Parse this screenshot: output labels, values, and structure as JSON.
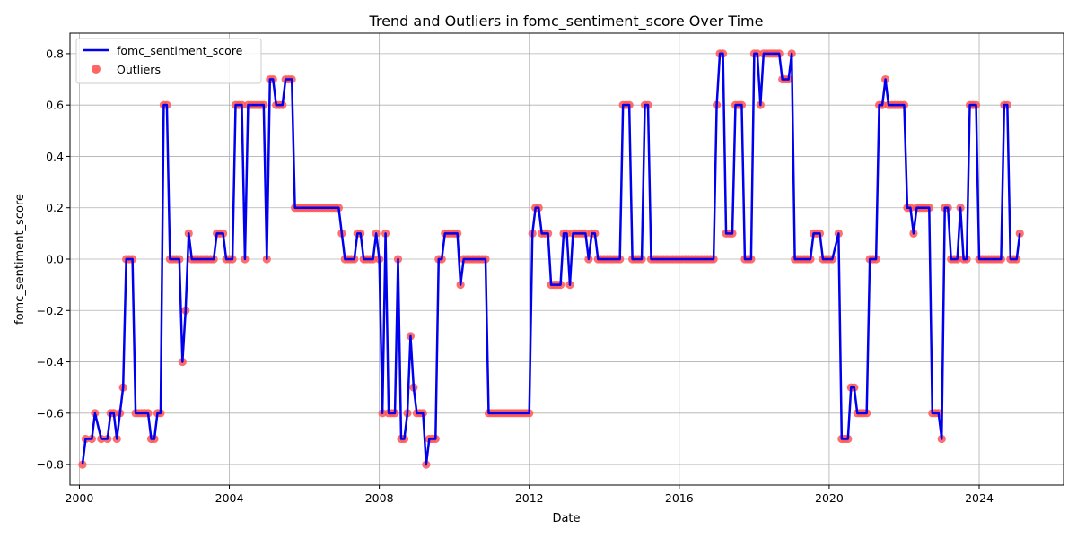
{
  "chart_data": {
    "type": "line",
    "title": "Trend and Outliers in fomc_sentiment_score Over Time",
    "xlabel": "Date",
    "ylabel": "fomc_sentiment_score",
    "xlim": [
      1999.75,
      2026.25
    ],
    "ylim": [
      -0.88,
      0.88
    ],
    "x_ticks": [
      2000,
      2004,
      2008,
      2012,
      2016,
      2020,
      2024
    ],
    "x_tick_labels": [
      "2000",
      "2004",
      "2008",
      "2012",
      "2016",
      "2020",
      "2024"
    ],
    "y_ticks": [
      -0.8,
      -0.6,
      -0.4,
      -0.2,
      0.0,
      0.2,
      0.4,
      0.6,
      0.8
    ],
    "y_tick_labels": [
      "−0.8",
      "−0.6",
      "−0.4",
      "−0.2",
      "0.0",
      "0.2",
      "0.4",
      "0.6",
      "0.8"
    ],
    "grid": true,
    "legend_position": "top-left",
    "series": [
      {
        "name": "fomc_sentiment_score",
        "kind": "line",
        "color": "#0000ee"
      },
      {
        "name": "Outliers",
        "kind": "scatter",
        "color": "#ff5555"
      }
    ],
    "points": [
      [
        "2000-02",
        -0.8
      ],
      [
        "2000-03",
        -0.7
      ],
      [
        "2000-05",
        -0.7
      ],
      [
        "2000-06",
        -0.6
      ],
      [
        "2000-08",
        -0.7
      ],
      [
        "2000-10",
        -0.7
      ],
      [
        "2000-11",
        -0.6
      ],
      [
        "2000-12",
        -0.6
      ],
      [
        "2001-01",
        -0.7
      ],
      [
        "2001-02",
        -0.6
      ],
      [
        "2001-03",
        -0.5
      ],
      [
        "2001-04",
        0.0
      ],
      [
        "2001-05",
        0.0
      ],
      [
        "2001-06",
        0.0
      ],
      [
        "2001-07",
        -0.6
      ],
      [
        "2001-08",
        -0.6
      ],
      [
        "2001-09",
        -0.6
      ],
      [
        "2001-10",
        -0.6
      ],
      [
        "2001-11",
        -0.6
      ],
      [
        "2001-12",
        -0.7
      ],
      [
        "2002-01",
        -0.7
      ],
      [
        "2002-02",
        -0.6
      ],
      [
        "2002-03",
        -0.6
      ],
      [
        "2002-04",
        0.6
      ],
      [
        "2002-05",
        0.6
      ],
      [
        "2002-06",
        0.0
      ],
      [
        "2002-07",
        0.0
      ],
      [
        "2002-08",
        0.0
      ],
      [
        "2002-09",
        0.0
      ],
      [
        "2002-10",
        -0.4
      ],
      [
        "2002-11",
        -0.2
      ],
      [
        "2002-12",
        0.1
      ],
      [
        "2003-01",
        0.0
      ],
      [
        "2003-02",
        0.0
      ],
      [
        "2003-03",
        0.0
      ],
      [
        "2003-04",
        0.0
      ],
      [
        "2003-05",
        0.0
      ],
      [
        "2003-06",
        0.0
      ],
      [
        "2003-07",
        0.0
      ],
      [
        "2003-08",
        0.0
      ],
      [
        "2003-09",
        0.1
      ],
      [
        "2003-10",
        0.1
      ],
      [
        "2003-11",
        0.1
      ],
      [
        "2003-12",
        0.0
      ],
      [
        "2004-01",
        0.0
      ],
      [
        "2004-02",
        0.0
      ],
      [
        "2004-03",
        0.6
      ],
      [
        "2004-04",
        0.6
      ],
      [
        "2004-05",
        0.6
      ],
      [
        "2004-06",
        0.0
      ],
      [
        "2004-07",
        0.6
      ],
      [
        "2004-08",
        0.6
      ],
      [
        "2004-09",
        0.6
      ],
      [
        "2004-10",
        0.6
      ],
      [
        "2004-11",
        0.6
      ],
      [
        "2004-12",
        0.6
      ],
      [
        "2005-01",
        0.0
      ],
      [
        "2005-02",
        0.7
      ],
      [
        "2005-03",
        0.7
      ],
      [
        "2005-04",
        0.6
      ],
      [
        "2005-05",
        0.6
      ],
      [
        "2005-06",
        0.6
      ],
      [
        "2005-07",
        0.7
      ],
      [
        "2005-08",
        0.7
      ],
      [
        "2005-09",
        0.7
      ],
      [
        "2005-10",
        0.2
      ],
      [
        "2005-11",
        0.2
      ],
      [
        "2005-12",
        0.2
      ],
      [
        "2006-01",
        0.2
      ],
      [
        "2006-02",
        0.2
      ],
      [
        "2006-03",
        0.2
      ],
      [
        "2006-04",
        0.2
      ],
      [
        "2006-05",
        0.2
      ],
      [
        "2006-06",
        0.2
      ],
      [
        "2006-07",
        0.2
      ],
      [
        "2006-08",
        0.2
      ],
      [
        "2006-09",
        0.2
      ],
      [
        "2006-10",
        0.2
      ],
      [
        "2006-11",
        0.2
      ],
      [
        "2006-12",
        0.2
      ],
      [
        "2007-01",
        0.1
      ],
      [
        "2007-02",
        0.0
      ],
      [
        "2007-03",
        0.0
      ],
      [
        "2007-04",
        0.0
      ],
      [
        "2007-05",
        0.0
      ],
      [
        "2007-06",
        0.1
      ],
      [
        "2007-07",
        0.1
      ],
      [
        "2007-08",
        0.0
      ],
      [
        "2007-09",
        0.0
      ],
      [
        "2007-10",
        0.0
      ],
      [
        "2007-11",
        0.0
      ],
      [
        "2007-12",
        0.1
      ],
      [
        "2008-01",
        0.0
      ],
      [
        "2008-02",
        -0.6
      ],
      [
        "2008-03",
        0.1
      ],
      [
        "2008-04",
        -0.6
      ],
      [
        "2008-05",
        -0.6
      ],
      [
        "2008-06",
        -0.6
      ],
      [
        "2008-07",
        0.0
      ],
      [
        "2008-08",
        -0.7
      ],
      [
        "2008-09",
        -0.7
      ],
      [
        "2008-10",
        -0.6
      ],
      [
        "2008-11",
        -0.3
      ],
      [
        "2008-12",
        -0.5
      ],
      [
        "2009-01",
        -0.6
      ],
      [
        "2009-02",
        -0.6
      ],
      [
        "2009-03",
        -0.6
      ],
      [
        "2009-04",
        -0.8
      ],
      [
        "2009-05",
        -0.7
      ],
      [
        "2009-06",
        -0.7
      ],
      [
        "2009-07",
        -0.7
      ],
      [
        "2009-08",
        0.0
      ],
      [
        "2009-09",
        0.0
      ],
      [
        "2009-10",
        0.1
      ],
      [
        "2009-11",
        0.1
      ],
      [
        "2009-12",
        0.1
      ],
      [
        "2010-01",
        0.1
      ],
      [
        "2010-02",
        0.1
      ],
      [
        "2010-03",
        -0.1
      ],
      [
        "2010-04",
        0.0
      ],
      [
        "2010-05",
        0.0
      ],
      [
        "2010-06",
        0.0
      ],
      [
        "2010-07",
        0.0
      ],
      [
        "2010-08",
        0.0
      ],
      [
        "2010-09",
        0.0
      ],
      [
        "2010-10",
        0.0
      ],
      [
        "2010-11",
        0.0
      ],
      [
        "2010-12",
        -0.6
      ],
      [
        "2011-01",
        -0.6
      ],
      [
        "2011-02",
        -0.6
      ],
      [
        "2011-03",
        -0.6
      ],
      [
        "2011-04",
        -0.6
      ],
      [
        "2011-05",
        -0.6
      ],
      [
        "2011-06",
        -0.6
      ],
      [
        "2011-07",
        -0.6
      ],
      [
        "2011-08",
        -0.6
      ],
      [
        "2011-09",
        -0.6
      ],
      [
        "2011-10",
        -0.6
      ],
      [
        "2011-11",
        -0.6
      ],
      [
        "2011-12",
        -0.6
      ],
      [
        "2012-01",
        -0.6
      ],
      [
        "2012-02",
        0.1
      ],
      [
        "2012-03",
        0.2
      ],
      [
        "2012-04",
        0.2
      ],
      [
        "2012-05",
        0.1
      ],
      [
        "2012-06",
        0.1
      ],
      [
        "2012-07",
        0.1
      ],
      [
        "2012-08",
        -0.1
      ],
      [
        "2012-09",
        -0.1
      ],
      [
        "2012-10",
        -0.1
      ],
      [
        "2012-11",
        -0.1
      ],
      [
        "2012-12",
        0.1
      ],
      [
        "2013-01",
        0.1
      ],
      [
        "2013-02",
        -0.1
      ],
      [
        "2013-03",
        0.1
      ],
      [
        "2013-04",
        0.1
      ],
      [
        "2013-05",
        0.1
      ],
      [
        "2013-06",
        0.1
      ],
      [
        "2013-07",
        0.1
      ],
      [
        "2013-08",
        0.0
      ],
      [
        "2013-09",
        0.1
      ],
      [
        "2013-10",
        0.1
      ],
      [
        "2013-11",
        0.0
      ],
      [
        "2013-12",
        0.0
      ],
      [
        "2014-01",
        0.0
      ],
      [
        "2014-02",
        0.0
      ],
      [
        "2014-03",
        0.0
      ],
      [
        "2014-04",
        0.0
      ],
      [
        "2014-05",
        0.0
      ],
      [
        "2014-06",
        0.0
      ],
      [
        "2014-07",
        0.6
      ],
      [
        "2014-08",
        0.6
      ],
      [
        "2014-09",
        0.6
      ],
      [
        "2014-10",
        0.0
      ],
      [
        "2014-11",
        0.0
      ],
      [
        "2014-12",
        0.0
      ],
      [
        "2015-01",
        0.0
      ],
      [
        "2015-02",
        0.6
      ],
      [
        "2015-03",
        0.6
      ],
      [
        "2015-04",
        0.0
      ],
      [
        "2015-05",
        0.0
      ],
      [
        "2015-06",
        0.0
      ],
      [
        "2015-07",
        0.0
      ],
      [
        "2015-08",
        0.0
      ],
      [
        "2015-09",
        0.0
      ],
      [
        "2015-10",
        0.0
      ],
      [
        "2015-11",
        0.0
      ],
      [
        "2015-12",
        0.0
      ],
      [
        "2016-01",
        0.0
      ],
      [
        "2016-02",
        0.0
      ],
      [
        "2016-03",
        0.0
      ],
      [
        "2016-04",
        0.0
      ],
      [
        "2016-05",
        0.0
      ],
      [
        "2016-06",
        0.0
      ],
      [
        "2016-07",
        0.0
      ],
      [
        "2016-08",
        0.0
      ],
      [
        "2016-09",
        0.0
      ],
      [
        "2016-10",
        0.0
      ],
      [
        "2016-11",
        0.0
      ],
      [
        "2016-12",
        0.0
      ],
      [
        "2017-01",
        0.6
      ],
      [
        "2017-02",
        0.8
      ],
      [
        "2017-03",
        0.8
      ],
      [
        "2017-04",
        0.1
      ],
      [
        "2017-05",
        0.1
      ],
      [
        "2017-06",
        0.1
      ],
      [
        "2017-07",
        0.6
      ],
      [
        "2017-08",
        0.6
      ],
      [
        "2017-09",
        0.6
      ],
      [
        "2017-10",
        0.0
      ],
      [
        "2017-11",
        0.0
      ],
      [
        "2017-12",
        0.0
      ],
      [
        "2018-01",
        0.8
      ],
      [
        "2018-02",
        0.8
      ],
      [
        "2018-03",
        0.6
      ],
      [
        "2018-04",
        0.8
      ],
      [
        "2018-05",
        0.8
      ],
      [
        "2018-06",
        0.8
      ],
      [
        "2018-07",
        0.8
      ],
      [
        "2018-08",
        0.8
      ],
      [
        "2018-09",
        0.8
      ],
      [
        "2018-10",
        0.7
      ],
      [
        "2018-11",
        0.7
      ],
      [
        "2018-12",
        0.7
      ],
      [
        "2019-01",
        0.8
      ],
      [
        "2019-02",
        0.0
      ],
      [
        "2019-03",
        0.0
      ],
      [
        "2019-04",
        0.0
      ],
      [
        "2019-05",
        0.0
      ],
      [
        "2019-06",
        0.0
      ],
      [
        "2019-07",
        0.0
      ],
      [
        "2019-08",
        0.1
      ],
      [
        "2019-09",
        0.1
      ],
      [
        "2019-10",
        0.1
      ],
      [
        "2019-11",
        0.0
      ],
      [
        "2019-12",
        0.0
      ],
      [
        "2020-01",
        0.0
      ],
      [
        "2020-02",
        0.0
      ],
      [
        "2020-04",
        0.1
      ],
      [
        "2020-05",
        -0.7
      ],
      [
        "2020-06",
        -0.7
      ],
      [
        "2020-07",
        -0.7
      ],
      [
        "2020-08",
        -0.5
      ],
      [
        "2020-09",
        -0.5
      ],
      [
        "2020-10",
        -0.6
      ],
      [
        "2020-11",
        -0.6
      ],
      [
        "2020-12",
        -0.6
      ],
      [
        "2021-01",
        -0.6
      ],
      [
        "2021-02",
        0.0
      ],
      [
        "2021-03",
        0.0
      ],
      [
        "2021-04",
        0.0
      ],
      [
        "2021-05",
        0.6
      ],
      [
        "2021-06",
        0.6
      ],
      [
        "2021-07",
        0.7
      ],
      [
        "2021-08",
        0.6
      ],
      [
        "2021-09",
        0.6
      ],
      [
        "2021-10",
        0.6
      ],
      [
        "2021-11",
        0.6
      ],
      [
        "2021-12",
        0.6
      ],
      [
        "2022-01",
        0.6
      ],
      [
        "2022-02",
        0.2
      ],
      [
        "2022-03",
        0.2
      ],
      [
        "2022-04",
        0.1
      ],
      [
        "2022-05",
        0.2
      ],
      [
        "2022-06",
        0.2
      ],
      [
        "2022-07",
        0.2
      ],
      [
        "2022-08",
        0.2
      ],
      [
        "2022-09",
        0.2
      ],
      [
        "2022-10",
        -0.6
      ],
      [
        "2022-11",
        -0.6
      ],
      [
        "2022-12",
        -0.6
      ],
      [
        "2023-01",
        -0.7
      ],
      [
        "2023-02",
        0.2
      ],
      [
        "2023-03",
        0.2
      ],
      [
        "2023-04",
        0.0
      ],
      [
        "2023-05",
        0.0
      ],
      [
        "2023-06",
        0.0
      ],
      [
        "2023-07",
        0.2
      ],
      [
        "2023-08",
        0.0
      ],
      [
        "2023-09",
        0.0
      ],
      [
        "2023-10",
        0.6
      ],
      [
        "2023-11",
        0.6
      ],
      [
        "2023-12",
        0.6
      ],
      [
        "2024-01",
        0.0
      ],
      [
        "2024-02",
        0.0
      ],
      [
        "2024-03",
        0.0
      ],
      [
        "2024-04",
        0.0
      ],
      [
        "2024-05",
        0.0
      ],
      [
        "2024-06",
        0.0
      ],
      [
        "2024-07",
        0.0
      ],
      [
        "2024-08",
        0.0
      ],
      [
        "2024-09",
        0.6
      ],
      [
        "2024-10",
        0.6
      ],
      [
        "2024-11",
        0.0
      ],
      [
        "2024-12",
        0.0
      ],
      [
        "2025-01",
        0.0
      ],
      [
        "2025-02",
        0.1
      ]
    ]
  }
}
